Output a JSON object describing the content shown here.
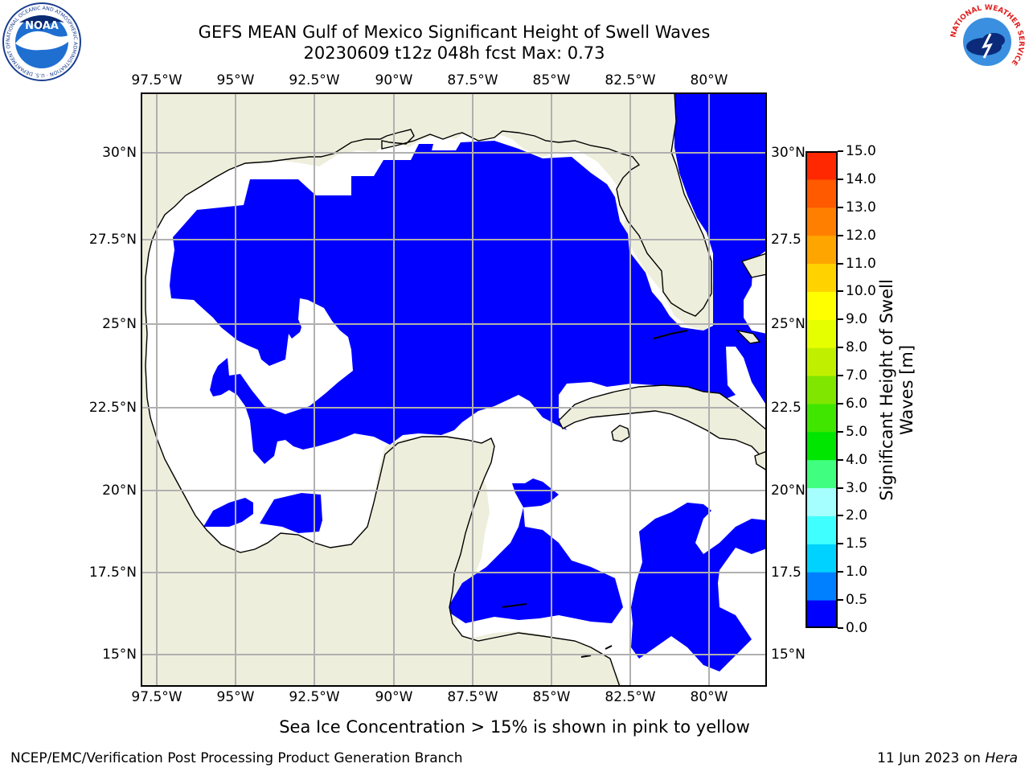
{
  "title": {
    "line1": "GEFS MEAN Gulf of Mexico Significant Height of Swell Waves",
    "line2": "20230609 t12z 048h fcst   Max: 0.73"
  },
  "map": {
    "lon_ticks": [
      "97.5°W",
      "95°W",
      "92.5°W",
      "90°W",
      "87.5°W",
      "85°W",
      "82.5°W",
      "80°W"
    ],
    "lat_ticks_left": [
      "30°N",
      "27.5°N",
      "25°N",
      "22.5°N",
      "20°N",
      "17.5°N",
      "15°N"
    ],
    "lat_ticks_right": [
      "30°N",
      "27.5",
      "25°N",
      "22.5",
      "20°N",
      "17.5",
      "15°N"
    ],
    "land_color": "#eeeedc",
    "ocean_low_color": "#0000ff",
    "ocean_mid_color": "#0080ff",
    "grid_color": "#b0b0b0"
  },
  "colorbar": {
    "label_line1": "Significant Height of Swell",
    "label_line2": "Waves [m]",
    "ticks": [
      "0.0",
      "0.5",
      "1.0",
      "1.5",
      "2.0",
      "3.0",
      "4.0",
      "5.0",
      "6.0",
      "7.0",
      "8.0",
      "9.0",
      "10.0",
      "11.0",
      "12.0",
      "13.0",
      "14.0",
      "15.0"
    ],
    "colors": [
      "#0000ff",
      "#0080ff",
      "#00d2ff",
      "#40ffff",
      "#a6ffff",
      "#40ff80",
      "#00e600",
      "#40e600",
      "#80e600",
      "#c0f000",
      "#e6ff00",
      "#ffff00",
      "#ffd200",
      "#ffa500",
      "#ff8000",
      "#ff5a00",
      "#ff2800",
      "#ff0000"
    ]
  },
  "footer": {
    "note": "Sea Ice Concentration > 15% is shown in pink to yellow",
    "left": "NCEP/EMC/Verification Post Processing Product Generation Branch",
    "date": "11 Jun 2023 on",
    "machine": "Hera"
  },
  "logos": {
    "noaa": {
      "text": "NOAA",
      "ring_text": "NATIONAL OCEANIC AND ATMOSPHERIC ADMINISTRATION · U.S. DEPARTMENT OF COMMERCE"
    },
    "nws": {
      "ring_text": "NATIONAL WEATHER SERVICE"
    }
  }
}
